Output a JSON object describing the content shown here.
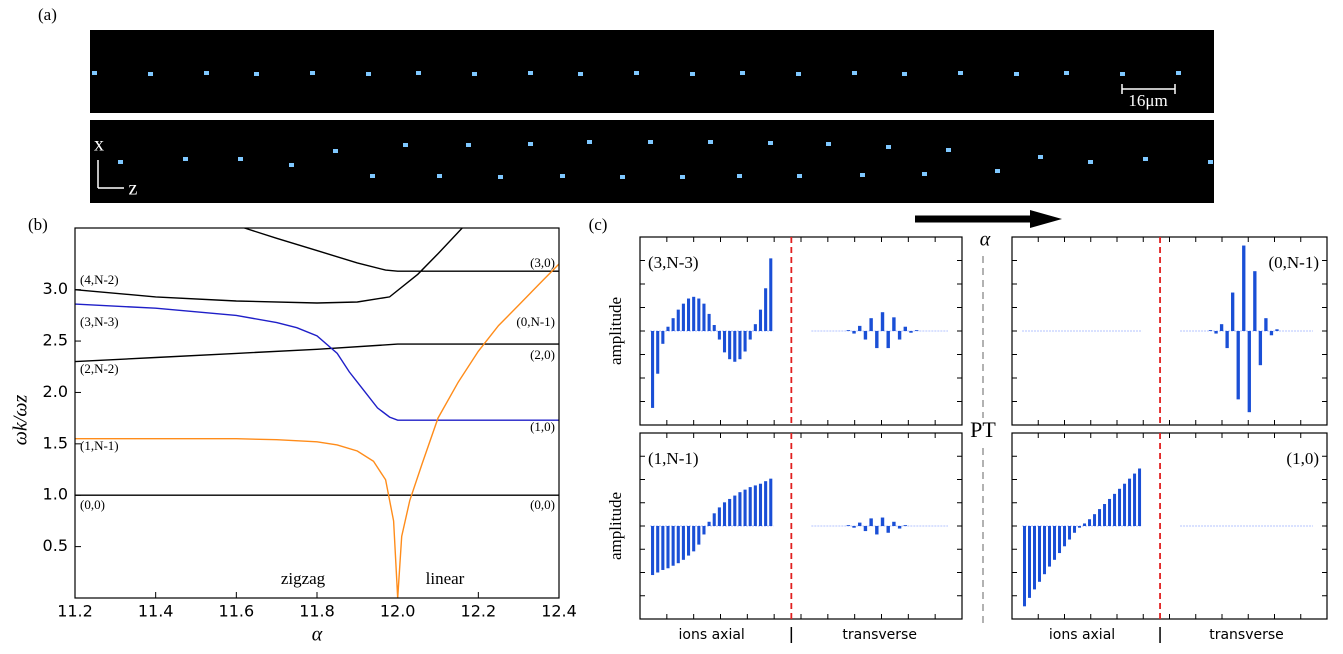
{
  "panel_a": {
    "label": "(a)",
    "scale_bar": "16μm",
    "axis_x": "x",
    "axis_z": "z"
  },
  "panel_c": {
    "label": "(c)",
    "arrow_label": "α",
    "center_label": "PT"
  },
  "chart_data": [
    {
      "type": "line",
      "panel_label": "(b)",
      "x_label": "α",
      "y_label": "ωk/ωz",
      "xlim": [
        11.2,
        12.4
      ],
      "ylim": [
        0,
        3.6
      ],
      "xticks": [
        11.2,
        11.4,
        11.6,
        11.8,
        {
          "value": 12,
          "label": "12.0"
        },
        12.2,
        12.4
      ],
      "yticks": [
        0.5,
        {
          "value": 1,
          "label": "1.0"
        },
        1.5,
        {
          "value": 2,
          "label": "2.0"
        },
        2.5,
        {
          "value": 3,
          "label": "3.0"
        }
      ],
      "series": [
        {
          "color": "#000000",
          "x": [
            11.2,
            12.4
          ],
          "values": [
            1,
            1
          ]
        },
        {
          "color": "#000000",
          "x": [
            11.2,
            11.4,
            11.6,
            11.8,
            12.0,
            12.4
          ],
          "values": [
            2.3,
            2.34,
            2.38,
            2.42,
            2.47,
            2.47
          ]
        },
        {
          "color": "#000000",
          "x": [
            11.2,
            11.4,
            11.6,
            11.8,
            11.9,
            11.98,
            12.05,
            12.1,
            12.16
          ],
          "values": [
            3.0,
            2.93,
            2.89,
            2.87,
            2.88,
            2.93,
            3.15,
            3.35,
            3.6
          ]
        },
        {
          "color": "#000000",
          "x": [
            11.62,
            11.7,
            11.8,
            11.9,
            11.97,
            12.0,
            12.4
          ],
          "values": [
            3.6,
            3.5,
            3.38,
            3.26,
            3.19,
            3.18,
            3.18
          ]
        },
        {
          "color": "#1f1fc8",
          "x": [
            11.2,
            11.4,
            11.6,
            11.7,
            11.75,
            11.8,
            11.85,
            11.88,
            11.92,
            11.95,
            11.98,
            12.0,
            12.4
          ],
          "values": [
            2.86,
            2.82,
            2.75,
            2.68,
            2.63,
            2.55,
            2.38,
            2.2,
            2.0,
            1.85,
            1.76,
            1.73,
            1.73
          ]
        },
        {
          "color": "#ff8c1a",
          "x": [
            11.2,
            11.4,
            11.6,
            11.7,
            11.8,
            11.85,
            11.9,
            11.94,
            11.97,
            11.99,
            12.0,
            12.01,
            12.03,
            12.06,
            12.1,
            12.15,
            12.2,
            12.25,
            12.3,
            12.35,
            12.4
          ],
          "values": [
            1.55,
            1.55,
            1.55,
            1.54,
            1.52,
            1.49,
            1.43,
            1.33,
            1.15,
            0.75,
            0,
            0.6,
            0.95,
            1.3,
            1.75,
            2.1,
            2.4,
            2.65,
            2.85,
            3.05,
            3.25
          ]
        }
      ],
      "annotations": [
        "(4,N-2)",
        "(3,N-3)",
        "(2,N-2)",
        "(1,N-1)",
        "(0,0)",
        "(3,0)",
        "(0,N-1)",
        "(2,0)",
        "(1,0)",
        "(0,0)",
        "zigzag",
        "linear"
      ]
    },
    {
      "type": "bar",
      "mode_label": "(3,N-3)",
      "y_label": "amplitude",
      "color": "#1a4fd6",
      "ylim": [
        -1.1,
        1.1
      ],
      "groups": [
        {
          "values": [
            -0.9,
            -0.5,
            -0.15,
            0.05,
            0.15,
            0.25,
            0.32,
            0.38,
            0.4,
            0.38,
            0.32,
            0.2,
            0.07,
            -0.1,
            -0.25,
            -0.33,
            -0.36,
            -0.33,
            -0.24,
            -0.1,
            0.08,
            0.25,
            0.5,
            0.85
          ]
        },
        {
          "values": [
            0,
            0,
            0,
            0,
            0,
            0,
            0.01,
            -0.03,
            0.06,
            -0.1,
            0.15,
            -0.2,
            0.22,
            -0.2,
            0.16,
            -0.1,
            0.05,
            -0.02,
            0.01,
            0,
            0,
            0,
            0,
            0
          ]
        }
      ]
    },
    {
      "type": "bar",
      "mode_label": "(0,N-1)",
      "color": "#1a4fd6",
      "ylim": [
        -1.1,
        1.1
      ],
      "groups": [
        {
          "values": [
            0,
            0,
            0,
            0,
            0,
            0,
            0,
            0,
            0,
            0,
            0,
            0,
            0,
            0,
            0,
            0,
            0,
            0,
            0,
            0,
            0,
            0,
            0,
            0
          ]
        },
        {
          "values": [
            0,
            0,
            0,
            0,
            0,
            0.01,
            -0.03,
            0.08,
            -0.2,
            0.45,
            -0.8,
            1.0,
            -0.95,
            0.7,
            -0.4,
            0.15,
            -0.05,
            0.02,
            0,
            0,
            0,
            0,
            0,
            0
          ]
        }
      ]
    },
    {
      "type": "bar",
      "mode_label": "(1,N-1)",
      "y_label": "amplitude",
      "color": "#1a4fd6",
      "ylim": [
        -1.1,
        1.1
      ],
      "groups": [
        {
          "label": "ions axial",
          "values": [
            -0.58,
            -0.55,
            -0.52,
            -0.5,
            -0.47,
            -0.44,
            -0.4,
            -0.35,
            -0.3,
            -0.22,
            -0.1,
            0.05,
            0.15,
            0.22,
            0.28,
            0.32,
            0.36,
            0.4,
            0.43,
            0.46,
            0.48,
            0.5,
            0.53,
            0.56
          ]
        },
        {
          "label": "transverse",
          "values": [
            0,
            0,
            0,
            0,
            0,
            0,
            0.01,
            -0.02,
            0.04,
            -0.06,
            0.09,
            -0.1,
            0.1,
            -0.08,
            0.05,
            -0.03,
            0.01,
            0,
            0,
            0,
            0,
            0,
            0,
            0
          ]
        }
      ]
    },
    {
      "type": "bar",
      "mode_label": "(1,0)",
      "color": "#1a4fd6",
      "ylim": [
        -1.1,
        1.1
      ],
      "groups": [
        {
          "label": "ions axial",
          "values": [
            -0.95,
            -0.85,
            -0.75,
            -0.66,
            -0.57,
            -0.48,
            -0.4,
            -0.32,
            -0.24,
            -0.16,
            -0.08,
            -0.02,
            0.03,
            0.08,
            0.14,
            0.2,
            0.26,
            0.32,
            0.38,
            0.44,
            0.5,
            0.56,
            0.62,
            0.68
          ]
        },
        {
          "label": "transverse",
          "values": [
            0,
            0,
            0,
            0,
            0,
            0,
            0,
            0,
            0,
            0,
            0,
            0,
            0,
            0,
            0,
            0,
            0,
            0,
            0,
            0,
            0,
            0,
            0,
            0
          ]
        }
      ]
    }
  ]
}
